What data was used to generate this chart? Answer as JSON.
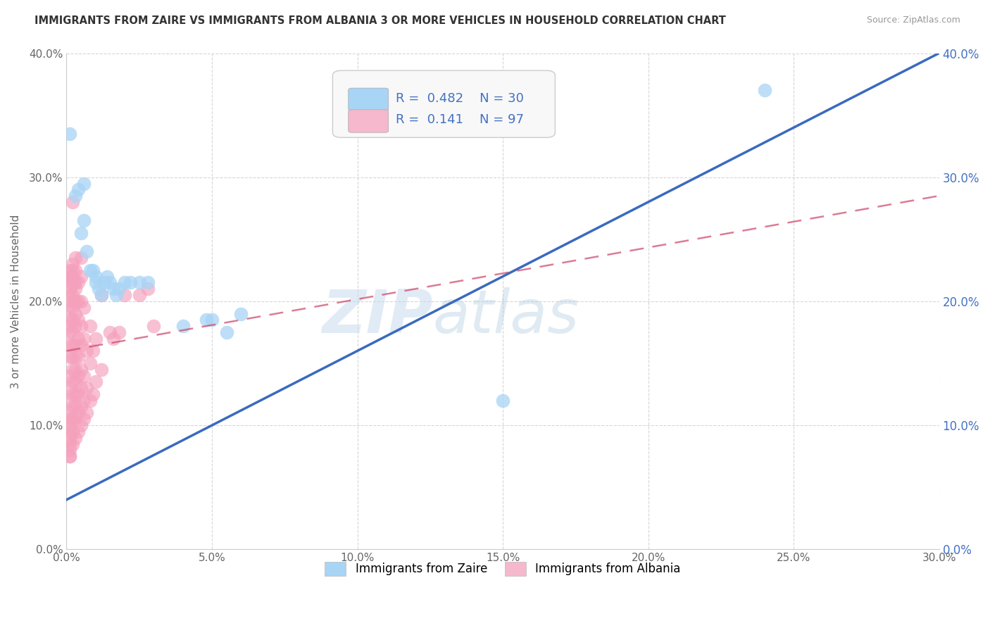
{
  "title": "IMMIGRANTS FROM ZAIRE VS IMMIGRANTS FROM ALBANIA 3 OR MORE VEHICLES IN HOUSEHOLD CORRELATION CHART",
  "source": "Source: ZipAtlas.com",
  "ylabel": "3 or more Vehicles in Household",
  "legend_zaire": "Immigrants from Zaire",
  "legend_albania": "Immigrants from Albania",
  "R_zaire": 0.482,
  "N_zaire": 30,
  "R_albania": 0.141,
  "N_albania": 97,
  "color_zaire": "#a8d4f5",
  "color_albania": "#f5a0bc",
  "color_zaire_line": "#3a6abf",
  "color_albania_line": "#d05070",
  "color_zaire_legend": "#a8d4f5",
  "color_albania_legend": "#f5b8cc",
  "xmin": 0.0,
  "xmax": 0.3,
  "ymin": 0.0,
  "ymax": 0.4,
  "watermark_zip": "ZIP",
  "watermark_atlas": "atlas",
  "zaire_line_x0": 0.0,
  "zaire_line_y0": 0.04,
  "zaire_line_x1": 0.3,
  "zaire_line_y1": 0.4,
  "albania_line_x0": 0.0,
  "albania_line_y0": 0.16,
  "albania_line_x1": 0.3,
  "albania_line_y1": 0.285,
  "zaire_points": [
    [
      0.001,
      0.335
    ],
    [
      0.003,
      0.285
    ],
    [
      0.004,
      0.29
    ],
    [
      0.005,
      0.255
    ],
    [
      0.006,
      0.295
    ],
    [
      0.006,
      0.265
    ],
    [
      0.007,
      0.24
    ],
    [
      0.008,
      0.225
    ],
    [
      0.009,
      0.225
    ],
    [
      0.01,
      0.22
    ],
    [
      0.01,
      0.215
    ],
    [
      0.011,
      0.21
    ],
    [
      0.012,
      0.205
    ],
    [
      0.013,
      0.215
    ],
    [
      0.014,
      0.22
    ],
    [
      0.015,
      0.215
    ],
    [
      0.016,
      0.21
    ],
    [
      0.017,
      0.205
    ],
    [
      0.018,
      0.21
    ],
    [
      0.02,
      0.215
    ],
    [
      0.022,
      0.215
    ],
    [
      0.025,
      0.215
    ],
    [
      0.028,
      0.215
    ],
    [
      0.04,
      0.18
    ],
    [
      0.048,
      0.185
    ],
    [
      0.05,
      0.185
    ],
    [
      0.055,
      0.175
    ],
    [
      0.06,
      0.19
    ],
    [
      0.15,
      0.12
    ],
    [
      0.24,
      0.37
    ]
  ],
  "albania_points": [
    [
      0.001,
      0.075
    ],
    [
      0.001,
      0.085
    ],
    [
      0.001,
      0.09
    ],
    [
      0.001,
      0.095
    ],
    [
      0.001,
      0.1
    ],
    [
      0.001,
      0.105
    ],
    [
      0.001,
      0.11
    ],
    [
      0.001,
      0.12
    ],
    [
      0.001,
      0.13
    ],
    [
      0.001,
      0.14
    ],
    [
      0.001,
      0.155
    ],
    [
      0.001,
      0.165
    ],
    [
      0.001,
      0.175
    ],
    [
      0.001,
      0.18
    ],
    [
      0.001,
      0.185
    ],
    [
      0.001,
      0.195
    ],
    [
      0.001,
      0.205
    ],
    [
      0.001,
      0.21
    ],
    [
      0.001,
      0.215
    ],
    [
      0.001,
      0.22
    ],
    [
      0.001,
      0.225
    ],
    [
      0.002,
      0.085
    ],
    [
      0.002,
      0.095
    ],
    [
      0.002,
      0.105
    ],
    [
      0.002,
      0.115
    ],
    [
      0.002,
      0.125
    ],
    [
      0.002,
      0.135
    ],
    [
      0.002,
      0.145
    ],
    [
      0.002,
      0.155
    ],
    [
      0.002,
      0.165
    ],
    [
      0.002,
      0.175
    ],
    [
      0.002,
      0.185
    ],
    [
      0.002,
      0.195
    ],
    [
      0.002,
      0.2
    ],
    [
      0.002,
      0.205
    ],
    [
      0.002,
      0.215
    ],
    [
      0.002,
      0.22
    ],
    [
      0.002,
      0.225
    ],
    [
      0.002,
      0.23
    ],
    [
      0.003,
      0.09
    ],
    [
      0.003,
      0.105
    ],
    [
      0.003,
      0.115
    ],
    [
      0.003,
      0.125
    ],
    [
      0.003,
      0.135
    ],
    [
      0.003,
      0.145
    ],
    [
      0.003,
      0.155
    ],
    [
      0.003,
      0.165
    ],
    [
      0.003,
      0.18
    ],
    [
      0.003,
      0.19
    ],
    [
      0.003,
      0.2
    ],
    [
      0.003,
      0.21
    ],
    [
      0.003,
      0.215
    ],
    [
      0.003,
      0.225
    ],
    [
      0.003,
      0.235
    ],
    [
      0.004,
      0.095
    ],
    [
      0.004,
      0.11
    ],
    [
      0.004,
      0.125
    ],
    [
      0.004,
      0.14
    ],
    [
      0.004,
      0.155
    ],
    [
      0.004,
      0.17
    ],
    [
      0.004,
      0.185
    ],
    [
      0.004,
      0.2
    ],
    [
      0.004,
      0.215
    ],
    [
      0.005,
      0.1
    ],
    [
      0.005,
      0.115
    ],
    [
      0.005,
      0.13
    ],
    [
      0.005,
      0.145
    ],
    [
      0.005,
      0.165
    ],
    [
      0.005,
      0.18
    ],
    [
      0.005,
      0.2
    ],
    [
      0.005,
      0.22
    ],
    [
      0.005,
      0.235
    ],
    [
      0.006,
      0.105
    ],
    [
      0.006,
      0.12
    ],
    [
      0.006,
      0.14
    ],
    [
      0.006,
      0.17
    ],
    [
      0.006,
      0.195
    ],
    [
      0.007,
      0.11
    ],
    [
      0.007,
      0.13
    ],
    [
      0.007,
      0.16
    ],
    [
      0.008,
      0.12
    ],
    [
      0.008,
      0.15
    ],
    [
      0.008,
      0.18
    ],
    [
      0.009,
      0.125
    ],
    [
      0.009,
      0.16
    ],
    [
      0.01,
      0.135
    ],
    [
      0.01,
      0.17
    ],
    [
      0.012,
      0.145
    ],
    [
      0.012,
      0.205
    ],
    [
      0.015,
      0.175
    ],
    [
      0.016,
      0.17
    ],
    [
      0.018,
      0.175
    ],
    [
      0.02,
      0.205
    ],
    [
      0.025,
      0.205
    ],
    [
      0.028,
      0.21
    ],
    [
      0.03,
      0.18
    ],
    [
      0.002,
      0.28
    ],
    [
      0.001,
      0.075
    ],
    [
      0.001,
      0.08
    ]
  ]
}
